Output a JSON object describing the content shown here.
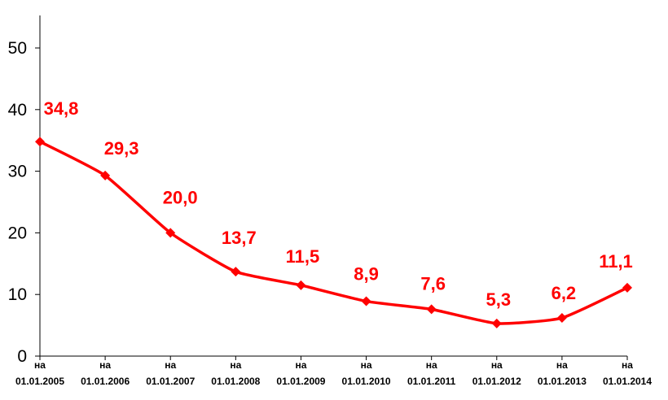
{
  "chart_data": {
    "type": "line",
    "title": "",
    "xlabel": "",
    "ylabel": "",
    "x_prefix": "на",
    "categories": [
      "01.01.2005",
      "01.01.2006",
      "01.01.2007",
      "01.01.2008",
      "01.01.2009",
      "01.01.2010",
      "01.01.2011",
      "01.01.2012",
      "01.01.2013",
      "01.01.2014"
    ],
    "series": [
      {
        "values": [
          34.8,
          29.3,
          20.0,
          13.7,
          11.5,
          8.9,
          7.6,
          5.3,
          6.2,
          11.1
        ]
      }
    ],
    "data_labels": [
      "34,8",
      "29,3",
      "20,0",
      "13,7",
      "11,5",
      "8,9",
      "7,6",
      "5,3",
      "6,2",
      "11,1"
    ],
    "yticks": [
      "0",
      "10",
      "20",
      "30",
      "40",
      "50"
    ],
    "ylim": [
      0,
      50
    ],
    "grid": false,
    "legend": "none",
    "colors": {
      "series": "#ff0000",
      "labels": "#ff0000",
      "axis": "#000000"
    }
  }
}
